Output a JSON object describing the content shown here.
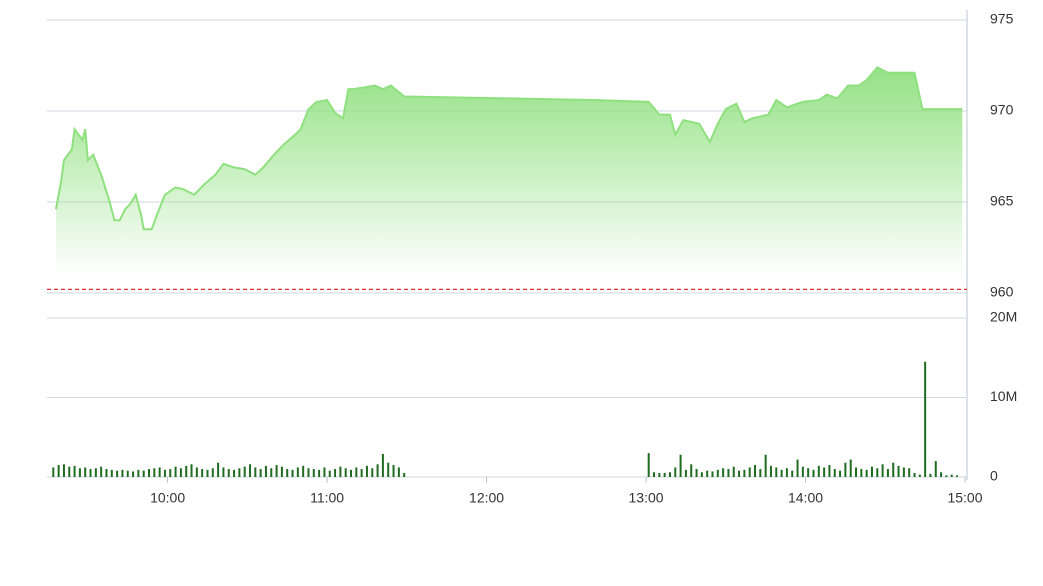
{
  "chart_data": [
    {
      "type": "area",
      "x": [
        558,
        560,
        561,
        564,
        565,
        568,
        569,
        570,
        572,
        575,
        578,
        580,
        582,
        584,
        586,
        588,
        590,
        591,
        594,
        596,
        599,
        603,
        606,
        610,
        614,
        618,
        621,
        625,
        629,
        633,
        636,
        640,
        644,
        648,
        650,
        653,
        656,
        660,
        663,
        666,
        668,
        670,
        674,
        678,
        681,
        684,
        689,
        725,
        762,
        781,
        785,
        789,
        791,
        794,
        800,
        804,
        807,
        810,
        814,
        817,
        820,
        826,
        829,
        833,
        839,
        845,
        848,
        852,
        856,
        860,
        863,
        867,
        871,
        881,
        884,
        899
      ],
      "series": [
        {
          "color": "#8fe07f",
          "values": [
            964.6,
            966.2,
            967.3,
            967.9,
            969,
            968.4,
            969,
            967.3,
            967.6,
            966.5,
            965.1,
            964,
            964,
            964.6,
            964.9,
            965.4,
            964.3,
            963.5,
            963.5,
            964.3,
            965.4,
            965.8,
            965.7,
            965.4,
            966,
            966.5,
            967.1,
            966.9,
            966.8,
            966.5,
            966.9,
            967.6,
            968.2,
            968.7,
            969,
            970.1,
            970.5,
            970.6,
            969.9,
            969.6,
            971.2,
            971.2,
            971.3,
            971.4,
            971.2,
            971.4,
            970.8,
            970.7,
            970.6,
            970.5,
            969.8,
            969.8,
            968.7,
            969.5,
            969.3,
            968.3,
            969.3,
            970.1,
            970.4,
            969.4,
            969.6,
            969.8,
            970.6,
            970.2,
            970.5,
            970.6,
            970.9,
            970.7,
            971.4,
            971.4,
            971.7,
            972.4,
            972.1,
            972.1,
            970.1,
            970.1
          ]
        }
      ],
      "reference": {
        "value": 960.2,
        "color": "#e03030"
      },
      "xlim": [
        555,
        900
      ],
      "ylim": [
        960,
        975
      ],
      "yticks": [
        960,
        965,
        970,
        975
      ],
      "grid": true
    },
    {
      "type": "bar",
      "x": [
        557,
        559,
        561,
        563,
        565,
        567,
        569,
        571,
        573,
        575,
        577,
        579,
        581,
        583,
        585,
        587,
        589,
        591,
        593,
        595,
        597,
        599,
        601,
        603,
        605,
        607,
        609,
        611,
        613,
        615,
        617,
        619,
        621,
        623,
        625,
        627,
        629,
        631,
        633,
        635,
        637,
        639,
        641,
        643,
        645,
        647,
        649,
        651,
        653,
        655,
        657,
        659,
        661,
        663,
        665,
        667,
        669,
        671,
        673,
        675,
        677,
        679,
        681,
        683,
        685,
        687,
        689,
        781,
        783,
        785,
        787,
        789,
        791,
        793,
        795,
        797,
        799,
        801,
        803,
        805,
        807,
        809,
        811,
        813,
        815,
        817,
        819,
        821,
        823,
        825,
        827,
        829,
        831,
        833,
        835,
        837,
        839,
        841,
        843,
        845,
        847,
        849,
        851,
        853,
        855,
        857,
        859,
        861,
        863,
        865,
        867,
        869,
        871,
        873,
        875,
        877,
        879,
        881,
        883,
        885,
        887,
        889,
        891,
        893,
        895,
        897
      ],
      "values": [
        1.2,
        1.5,
        1.6,
        1.3,
        1.4,
        1.1,
        1.2,
        1.0,
        1.1,
        1.3,
        1.0,
        0.9,
        0.8,
        0.9,
        0.8,
        0.7,
        0.9,
        0.8,
        1.0,
        1.1,
        1.2,
        0.9,
        1.0,
        1.3,
        1.1,
        1.4,
        1.6,
        1.2,
        1.0,
        0.9,
        1.1,
        1.8,
        1.2,
        1.0,
        0.9,
        1.1,
        1.3,
        1.6,
        1.2,
        1.0,
        1.4,
        1.1,
        1.5,
        1.3,
        1.0,
        0.9,
        1.2,
        1.4,
        1.1,
        1.0,
        0.9,
        1.2,
        0.8,
        1.0,
        1.3,
        1.1,
        0.9,
        1.2,
        1.0,
        1.4,
        1.1,
        1.6,
        2.9,
        1.8,
        1.5,
        1.2,
        0.5,
        3.0,
        0.6,
        0.5,
        0.5,
        0.6,
        1.2,
        2.8,
        0.9,
        1.6,
        1.0,
        0.6,
        0.8,
        0.7,
        0.9,
        1.1,
        1.0,
        1.3,
        0.8,
        0.9,
        1.2,
        1.5,
        1.0,
        2.8,
        1.4,
        1.2,
        0.9,
        1.1,
        0.8,
        2.2,
        1.3,
        1.1,
        0.9,
        1.4,
        1.2,
        1.5,
        1.0,
        0.8,
        1.8,
        2.2,
        1.2,
        1.0,
        0.9,
        1.3,
        1.1,
        1.6,
        1.0,
        1.8,
        1.4,
        1.2,
        1.1,
        0.5,
        0.3,
        14.5,
        0.4,
        2.0,
        0.6,
        0.2,
        0.3,
        0.2
      ],
      "color": "#1f6b1f",
      "xlim": [
        555,
        900
      ],
      "xticks": [
        {
          "value": 600,
          "label": "10:00"
        },
        {
          "value": 660,
          "label": "11:00"
        },
        {
          "value": 720,
          "label": "12:00"
        },
        {
          "value": 780,
          "label": "13:00"
        },
        {
          "value": 840,
          "label": "14:00"
        },
        {
          "value": 900,
          "label": "15:00"
        }
      ],
      "ylim": [
        0,
        20
      ],
      "yticks": [
        0,
        {
          "value": 10,
          "label": "10M"
        },
        {
          "value": 20,
          "label": "20M"
        }
      ],
      "grid": true
    }
  ]
}
